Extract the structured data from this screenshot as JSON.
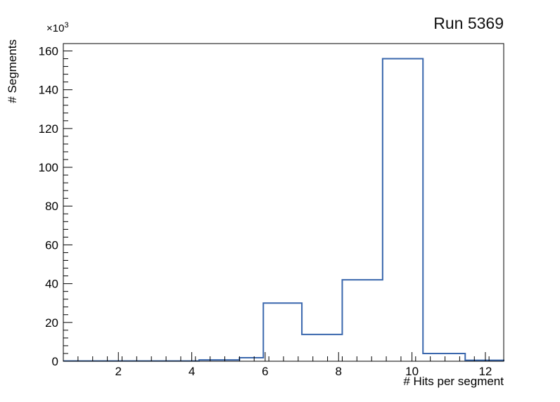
{
  "chart_data": {
    "type": "histogram-step",
    "title": "Run 5369",
    "xlabel": "# Hits per segment",
    "ylabel": "# Segments",
    "y_exponent": {
      "base": "×10",
      "exp": "3"
    },
    "xlim": [
      0.5,
      12.5
    ],
    "ylim": [
      0,
      163.8
    ],
    "x_major_ticks": [
      2,
      4,
      6,
      8,
      10,
      12
    ],
    "x_minor_step": 0.4,
    "y_major_ticks": [
      0,
      20,
      40,
      60,
      80,
      100,
      120,
      140,
      160
    ],
    "y_minor_step": 4,
    "grid": false,
    "values_unit": "thousands of segments",
    "line_color": "#3a67ad",
    "line_width": 2,
    "bins": [
      {
        "x0": 0.5,
        "x1": 4.2,
        "y": 0.15
      },
      {
        "x0": 4.2,
        "x1": 5.3,
        "y": 0.7
      },
      {
        "x0": 5.3,
        "x1": 5.95,
        "y": 1.8
      },
      {
        "x0": 5.95,
        "x1": 7.0,
        "y": 30
      },
      {
        "x0": 7.0,
        "x1": 8.1,
        "y": 13.8
      },
      {
        "x0": 8.1,
        "x1": 9.2,
        "y": 42
      },
      {
        "x0": 9.2,
        "x1": 10.3,
        "y": 156
      },
      {
        "x0": 10.3,
        "x1": 11.45,
        "y": 4
      },
      {
        "x0": 11.45,
        "x1": 12.5,
        "y": 0.5
      }
    ]
  }
}
